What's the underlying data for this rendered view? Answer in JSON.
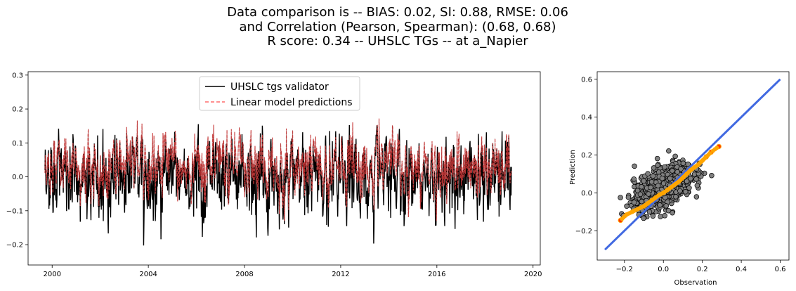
{
  "figure": {
    "title_lines": [
      "Data comparison is -- BIAS: 0.02, SI: 0.88, RMSE: 0.06",
      "and Correlation (Pearson, Spearman): (0.68, 0.68)",
      "R score: 0.34 -- UHSLC TGs -- at a_Napier"
    ]
  },
  "chart_data": [
    {
      "type": "line",
      "title": "",
      "xlabel": "",
      "ylabel": "",
      "xlim": [
        1999.0,
        2020.3
      ],
      "ylim": [
        -0.26,
        0.31
      ],
      "xticks": [
        "2000",
        "2004",
        "2008",
        "2012",
        "2016",
        "2020"
      ],
      "xtick_values": [
        2000,
        2004,
        2008,
        2012,
        2016,
        2020
      ],
      "yticks": [
        "−0.2",
        "−0.1",
        "0.0",
        "0.1",
        "0.2",
        "0.3"
      ],
      "ytick_values": [
        -0.2,
        -0.1,
        0.0,
        0.1,
        0.2,
        0.3
      ],
      "x_range": [
        1999.7,
        2019.1
      ],
      "legend": {
        "placement": "top-center"
      },
      "series": [
        {
          "name": "UHSLC tgs validator",
          "color": "#000000",
          "style": "solid",
          "approx": {
            "mean": 0.0,
            "min": -0.235,
            "max": 0.28
          }
        },
        {
          "name": "Linear model predictions",
          "color": "#ff6b6b",
          "style": "dashed",
          "approx": {
            "mean": 0.03,
            "min": -0.13,
            "max": 0.25
          }
        }
      ]
    },
    {
      "type": "scatter",
      "title": "",
      "xlabel": "Observation",
      "ylabel": "Prediction",
      "xlim": [
        -0.34,
        0.645
      ],
      "ylim": [
        -0.355,
        0.64
      ],
      "xticks": [
        "−0.2",
        "0.0",
        "0.2",
        "0.4",
        "0.6"
      ],
      "xtick_values": [
        -0.2,
        0.0,
        0.2,
        0.4,
        0.6
      ],
      "yticks": [
        "−0.2",
        "0.0",
        "0.2",
        "0.4",
        "0.6"
      ],
      "ytick_values": [
        -0.2,
        0.0,
        0.2,
        0.4,
        0.6
      ],
      "identity_line": {
        "x": [
          -0.3,
          0.6
        ],
        "y": [
          -0.3,
          0.6
        ],
        "color": "#4169e1"
      },
      "points_color": "#808080",
      "quantile_color": "#ffa500",
      "quantile_extreme_color": "#ff3300",
      "quantiles": {
        "x": [
          -0.22,
          -0.19,
          -0.16,
          -0.13,
          -0.1,
          -0.08,
          -0.06,
          -0.04,
          -0.02,
          0.0,
          0.02,
          0.04,
          0.06,
          0.08,
          0.1,
          0.12,
          0.14,
          0.16,
          0.18,
          0.2,
          0.22,
          0.245,
          0.285
        ],
        "y": [
          -0.145,
          -0.115,
          -0.1,
          -0.085,
          -0.07,
          -0.055,
          -0.04,
          -0.025,
          -0.01,
          0.0,
          0.015,
          0.03,
          0.045,
          0.06,
          0.08,
          0.1,
          0.12,
          0.135,
          0.15,
          0.17,
          0.19,
          0.215,
          0.245
        ]
      }
    }
  ]
}
